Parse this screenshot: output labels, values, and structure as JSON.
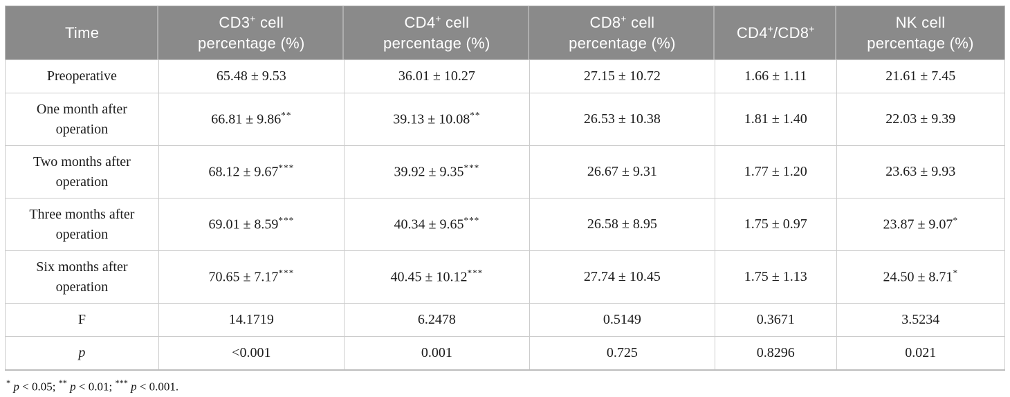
{
  "colors": {
    "header_bg": "#8a8a8a",
    "header_text": "#ffffff",
    "header_divider": "#aeaeae",
    "body_text": "#1c1c1c",
    "grid_line": "#cccccc",
    "outer_border": "#bdbdbd",
    "page_bg": "#ffffff"
  },
  "table": {
    "columns": [
      {
        "id": "time",
        "header": [
          {
            "text": "Time"
          }
        ]
      },
      {
        "id": "cd3",
        "header": [
          {
            "text": "CD3"
          },
          {
            "text": "+",
            "sup": true
          },
          {
            "text": " cell"
          },
          {
            "br": true
          },
          {
            "text": "percentage (%)"
          }
        ]
      },
      {
        "id": "cd4",
        "header": [
          {
            "text": "CD4"
          },
          {
            "text": "+",
            "sup": true
          },
          {
            "text": " cell"
          },
          {
            "br": true
          },
          {
            "text": "percentage (%)"
          }
        ]
      },
      {
        "id": "cd8",
        "header": [
          {
            "text": "CD8"
          },
          {
            "text": "+",
            "sup": true
          },
          {
            "text": " cell"
          },
          {
            "br": true
          },
          {
            "text": "percentage (%)"
          }
        ]
      },
      {
        "id": "cd4-cd8-ratio",
        "header": [
          {
            "text": "CD4"
          },
          {
            "text": "+",
            "sup": true
          },
          {
            "text": "/CD8"
          },
          {
            "text": "+",
            "sup": true
          }
        ]
      },
      {
        "id": "nk",
        "header": [
          {
            "text": "NK cell"
          },
          {
            "br": true
          },
          {
            "text": "percentage (%)"
          }
        ]
      }
    ],
    "rows": [
      {
        "id": "preoperative",
        "label": "Preoperative",
        "tall": false,
        "italic": false,
        "values": [
          {
            "text": "65.48 ± 9.53",
            "sup": ""
          },
          {
            "text": "36.01 ± 10.27",
            "sup": ""
          },
          {
            "text": "27.15 ± 10.72",
            "sup": ""
          },
          {
            "text": "1.66 ± 1.11",
            "sup": ""
          },
          {
            "text": "21.61 ± 7.45",
            "sup": ""
          }
        ]
      },
      {
        "id": "one-month",
        "label": "One month after operation",
        "tall": true,
        "italic": false,
        "values": [
          {
            "text": "66.81 ± 9.86",
            "sup": "**"
          },
          {
            "text": "39.13 ± 10.08",
            "sup": "**"
          },
          {
            "text": "26.53 ± 10.38",
            "sup": ""
          },
          {
            "text": "1.81 ± 1.40",
            "sup": ""
          },
          {
            "text": "22.03 ± 9.39",
            "sup": ""
          }
        ]
      },
      {
        "id": "two-months",
        "label": "Two months after operation",
        "tall": true,
        "italic": false,
        "values": [
          {
            "text": "68.12 ± 9.67",
            "sup": "***"
          },
          {
            "text": "39.92 ± 9.35",
            "sup": "***"
          },
          {
            "text": "26.67 ± 9.31",
            "sup": ""
          },
          {
            "text": "1.77 ± 1.20",
            "sup": ""
          },
          {
            "text": "23.63 ± 9.93",
            "sup": ""
          }
        ]
      },
      {
        "id": "three-months",
        "label": "Three months after operation",
        "tall": true,
        "italic": false,
        "values": [
          {
            "text": "69.01 ± 8.59",
            "sup": "***"
          },
          {
            "text": "40.34 ± 9.65",
            "sup": "***"
          },
          {
            "text": "26.58 ± 8.95",
            "sup": ""
          },
          {
            "text": "1.75 ± 0.97",
            "sup": ""
          },
          {
            "text": "23.87 ± 9.07",
            "sup": "*"
          }
        ]
      },
      {
        "id": "six-months",
        "label": "Six months after operation",
        "tall": true,
        "italic": false,
        "values": [
          {
            "text": "70.65 ± 7.17",
            "sup": "***"
          },
          {
            "text": "40.45 ± 10.12",
            "sup": "***"
          },
          {
            "text": "27.74 ± 10.45",
            "sup": ""
          },
          {
            "text": "1.75 ± 1.13",
            "sup": ""
          },
          {
            "text": "24.50 ± 8.71",
            "sup": "*"
          }
        ]
      },
      {
        "id": "f-statistic",
        "label": "F",
        "tall": false,
        "italic": false,
        "values": [
          {
            "text": "14.1719",
            "sup": ""
          },
          {
            "text": "6.2478",
            "sup": ""
          },
          {
            "text": "0.5149",
            "sup": ""
          },
          {
            "text": "0.3671",
            "sup": ""
          },
          {
            "text": "3.5234",
            "sup": ""
          }
        ]
      },
      {
        "id": "p-value",
        "label": "p",
        "tall": false,
        "italic": true,
        "values": [
          {
            "text": "<0.001",
            "sup": ""
          },
          {
            "text": "0.001",
            "sup": ""
          },
          {
            "text": "0.725",
            "sup": ""
          },
          {
            "text": "0.8296",
            "sup": ""
          },
          {
            "text": "0.021",
            "sup": ""
          }
        ]
      }
    ]
  },
  "footnote": [
    {
      "text": "*",
      "sup": true
    },
    {
      "text": " "
    },
    {
      "text": "p",
      "italic": true
    },
    {
      "text": " < 0.05; "
    },
    {
      "text": "**",
      "sup": true
    },
    {
      "text": " "
    },
    {
      "text": "p",
      "italic": true
    },
    {
      "text": " < 0.01; "
    },
    {
      "text": "***",
      "sup": true
    },
    {
      "text": " "
    },
    {
      "text": "p",
      "italic": true
    },
    {
      "text": " < 0.001."
    }
  ]
}
